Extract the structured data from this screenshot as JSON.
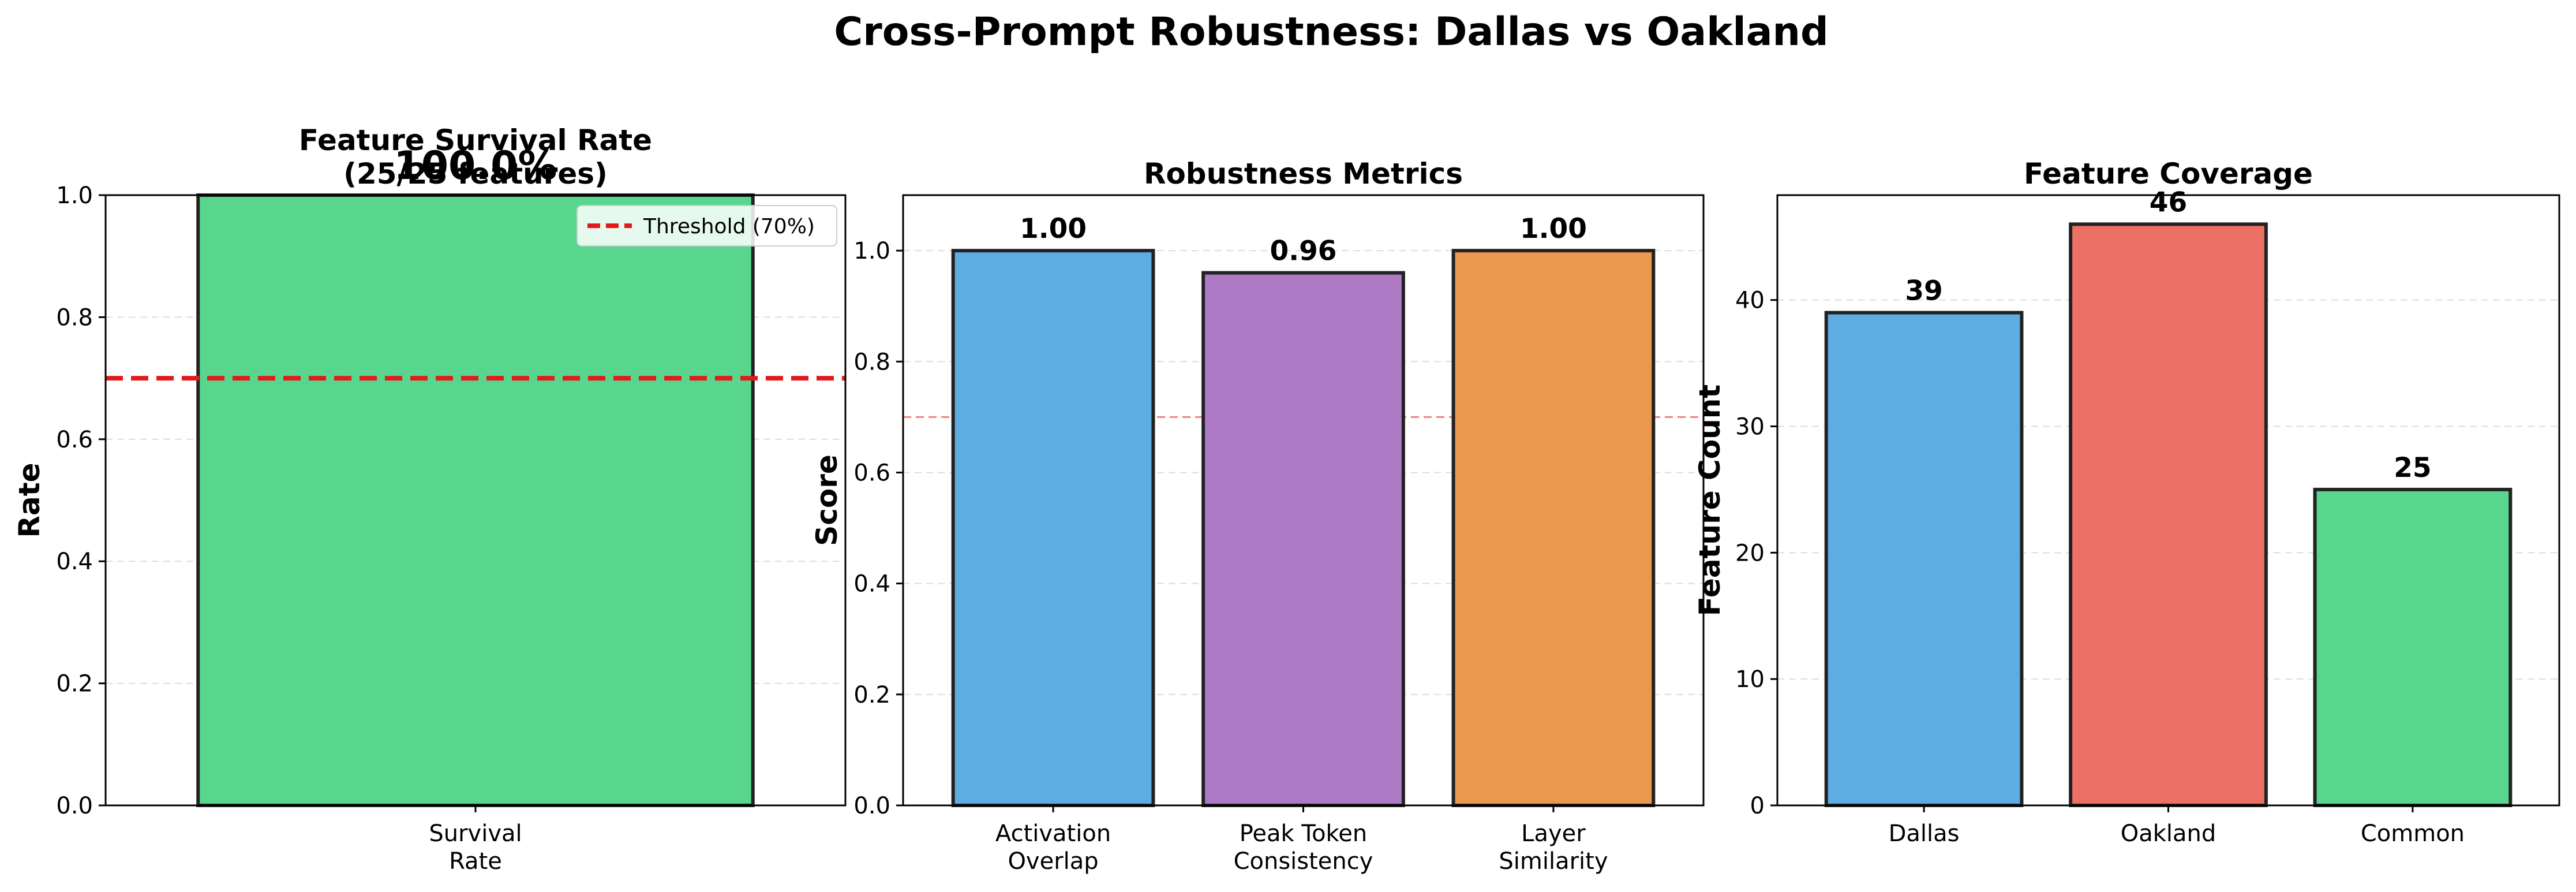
{
  "suptitle": "Cross-Prompt Robustness: Dallas vs Oakland",
  "colors": {
    "green": "#58D68D",
    "blue": "#5DADE2",
    "purple": "#AF7AC5",
    "orange": "#EB984E",
    "red": "#EC7063",
    "threshold": "#E31A1C",
    "grid": "#DDDDDD"
  },
  "chart_data": [
    {
      "type": "bar",
      "title": "Feature Survival Rate\n(25/25 features)",
      "categories": [
        "Survival\nRate"
      ],
      "values": [
        1.0
      ],
      "colors": [
        "#58D68D"
      ],
      "ylabel": "Rate",
      "ylim": [
        0,
        1.0
      ],
      "yticks": [
        0.0,
        0.2,
        0.4,
        0.6,
        0.8,
        1.0
      ],
      "grid": true,
      "hline": {
        "y": 0.7,
        "style": "dashed",
        "label": "Threshold (70%)",
        "bold": true
      },
      "legend": {
        "placement": "top-right",
        "entries": [
          "Threshold (70%)"
        ]
      },
      "annotations": [
        {
          "x": 0,
          "y": 1.0,
          "text": "100.0%"
        }
      ]
    },
    {
      "type": "bar",
      "title": "Robustness Metrics",
      "categories": [
        "Activation\nOverlap",
        "Peak Token\nConsistency",
        "Layer\nSimilarity"
      ],
      "values": [
        1.0,
        0.96,
        1.0
      ],
      "colors": [
        "#5DADE2",
        "#AF7AC5",
        "#EB984E"
      ],
      "data_labels": [
        "1.00",
        "0.96",
        "1.00"
      ],
      "ylabel": "Score",
      "ylim": [
        0,
        1.1
      ],
      "yticks": [
        0.0,
        0.2,
        0.4,
        0.6,
        0.8,
        1.0
      ],
      "grid": true,
      "hline": {
        "y": 0.7,
        "style": "dashed",
        "label": "",
        "bold": false
      }
    },
    {
      "type": "bar",
      "title": "Feature Coverage",
      "categories": [
        "Dallas",
        "Oakland",
        "Common"
      ],
      "values": [
        39,
        46,
        25
      ],
      "colors": [
        "#5DADE2",
        "#EC7063",
        "#58D68D"
      ],
      "data_labels": [
        "39",
        "46",
        "25"
      ],
      "ylabel": "Feature Count",
      "ylim": [
        0,
        48.3
      ],
      "yticks": [
        0,
        10,
        20,
        30,
        40
      ],
      "grid": true
    }
  ]
}
